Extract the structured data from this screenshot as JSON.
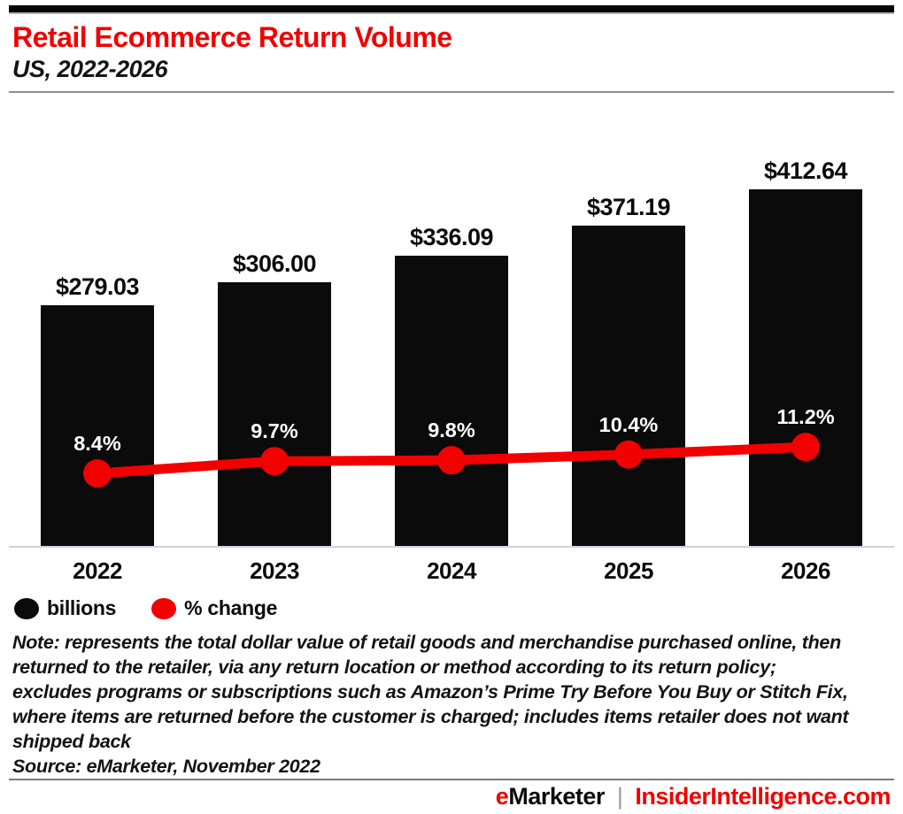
{
  "header": {
    "title": "Retail Ecommerce Return Volume",
    "subtitle": "US, 2022-2026"
  },
  "chart_data": {
    "type": "bar+line",
    "title": "Retail Ecommerce Return Volume",
    "subtitle": "US, 2022-2026",
    "categories": [
      "2022",
      "2023",
      "2024",
      "2025",
      "2026"
    ],
    "series": [
      {
        "name": "billions",
        "type": "bar",
        "unit": "US$ billions",
        "values": [
          279.03,
          306.0,
          336.09,
          371.19,
          412.64
        ],
        "labels": [
          "$279.03",
          "$306.00",
          "$336.09",
          "$371.19",
          "$412.64"
        ],
        "color": "#0b0b0b"
      },
      {
        "name": "% change",
        "type": "line",
        "unit": "percent",
        "values": [
          8.4,
          9.7,
          9.8,
          10.4,
          11.2
        ],
        "labels": [
          "8.4%",
          "9.7%",
          "9.8%",
          "10.4%",
          "11.2%"
        ],
        "color": "#f20000"
      }
    ],
    "legend": [
      {
        "label": "billions",
        "color": "#0b0b0b"
      },
      {
        "label": "% change",
        "color": "#f20000"
      }
    ],
    "legend_position": "bottom-left",
    "grid": false,
    "ylim_bars": [
      0,
      450
    ],
    "ylim_line": [
      0,
      12
    ]
  },
  "note": {
    "lines": [
      "Note: represents the total dollar value of retail goods and merchandise purchased online, then",
      "returned to the retailer, via any return location or method according to its return policy;",
      "excludes programs or subscriptions such as Amazon’s Prime Try Before You Buy or Stitch Fix,",
      "where items are returned before the customer is charged; includes items retailer does not want",
      "shipped back"
    ],
    "source": "Source: eMarketer, November 2022"
  },
  "footer": {
    "brand_e": "e",
    "brand_rest": "Marketer",
    "separator": "|",
    "site": "InsiderIntelligence.com"
  },
  "colors": {
    "accent_red": "#f20000",
    "bar_black": "#0b0b0b",
    "axis_line": "#ccd4e0"
  }
}
